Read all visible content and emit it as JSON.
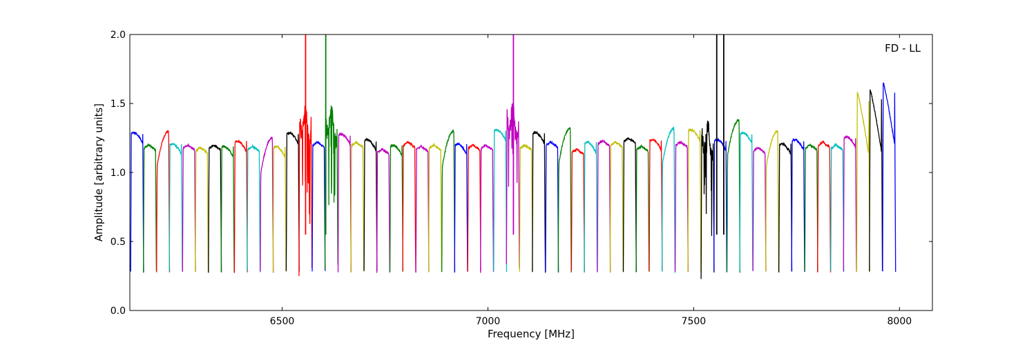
{
  "chart_data": {
    "type": "line",
    "title": "",
    "xlabel": "Frequency [MHz]",
    "ylabel": "Amplitude [arbitrary units]",
    "xlim": [
      6130,
      8080
    ],
    "ylim": [
      0.0,
      2.0
    ],
    "x_ticks": [
      6500,
      7000,
      7500,
      8000
    ],
    "x_tick_labels": [
      "6500",
      "7000",
      "7500",
      "8000"
    ],
    "y_ticks": [
      0.0,
      0.5,
      1.0,
      1.5,
      2.0
    ],
    "y_tick_labels": [
      "0.0",
      "0.5",
      "1.0",
      "1.5",
      "2.0"
    ],
    "grid": false,
    "annotation": "FD - LL",
    "annotation_position": "top-right",
    "band_width_mhz": 31.5,
    "colors": {
      "b": "#0000ff",
      "g": "#008000",
      "r": "#ff0000",
      "c": "#00bfbf",
      "m": "#bf00bf",
      "y": "#bfbf00",
      "k": "#000000"
    },
    "series": [
      {
        "start": 6132,
        "color": "b",
        "peak": 1.33,
        "shape": "hump"
      },
      {
        "start": 6163,
        "color": "g",
        "peak": 1.2,
        "shape": "flat"
      },
      {
        "start": 6195,
        "color": "r",
        "peak": 1.3,
        "shape": "rising"
      },
      {
        "start": 6226,
        "color": "c",
        "peak": 1.25,
        "shape": "hump"
      },
      {
        "start": 6258,
        "color": "m",
        "peak": 1.2,
        "shape": "flat"
      },
      {
        "start": 6289,
        "color": "y",
        "peak": 1.18,
        "shape": "flat"
      },
      {
        "start": 6321,
        "color": "k",
        "peak": 1.2,
        "shape": "flat"
      },
      {
        "start": 6352,
        "color": "g",
        "peak": 1.23,
        "shape": "hump"
      },
      {
        "start": 6384,
        "color": "r",
        "peak": 1.27,
        "shape": "hump"
      },
      {
        "start": 6415,
        "color": "c",
        "peak": 1.19,
        "shape": "flat"
      },
      {
        "start": 6447,
        "color": "m",
        "peak": 1.25,
        "shape": "rising"
      },
      {
        "start": 6478,
        "color": "y",
        "peak": 1.23,
        "shape": "hump"
      },
      {
        "start": 6510,
        "color": "k",
        "peak": 1.33,
        "shape": "hump"
      },
      {
        "start": 6541,
        "color": "r",
        "peak": 1.4,
        "shape": "noisy",
        "spike": 6555
      },
      {
        "start": 6573,
        "color": "b",
        "peak": 1.22,
        "shape": "flat"
      },
      {
        "start": 6604,
        "color": "g",
        "peak": 1.4,
        "shape": "noisy",
        "spike": 6606
      },
      {
        "start": 6636,
        "color": "m",
        "peak": 1.32,
        "shape": "hump"
      },
      {
        "start": 6667,
        "color": "y",
        "peak": 1.22,
        "shape": "flat"
      },
      {
        "start": 6699,
        "color": "k",
        "peak": 1.28,
        "shape": "hump"
      },
      {
        "start": 6730,
        "color": "m",
        "peak": 1.17,
        "shape": "flat"
      },
      {
        "start": 6762,
        "color": "g",
        "peak": 1.24,
        "shape": "hump"
      },
      {
        "start": 6793,
        "color": "r",
        "peak": 1.22,
        "shape": "flat"
      },
      {
        "start": 6825,
        "color": "m",
        "peak": 1.19,
        "shape": "flat"
      },
      {
        "start": 6856,
        "color": "y",
        "peak": 1.2,
        "shape": "flat"
      },
      {
        "start": 6888,
        "color": "g",
        "peak": 1.3,
        "shape": "rising"
      },
      {
        "start": 6919,
        "color": "b",
        "peak": 1.25,
        "shape": "hump"
      },
      {
        "start": 6951,
        "color": "r",
        "peak": 1.2,
        "shape": "flat"
      },
      {
        "start": 6982,
        "color": "m",
        "peak": 1.2,
        "shape": "flat"
      },
      {
        "start": 7014,
        "color": "c",
        "peak": 1.35,
        "shape": "hump"
      },
      {
        "start": 7045,
        "color": "m",
        "peak": 1.42,
        "shape": "noisy",
        "spike": 7060
      },
      {
        "start": 7077,
        "color": "y",
        "peak": 1.2,
        "shape": "flat"
      },
      {
        "start": 7108,
        "color": "k",
        "peak": 1.33,
        "shape": "hump"
      },
      {
        "start": 7140,
        "color": "b",
        "peak": 1.22,
        "shape": "flat"
      },
      {
        "start": 7171,
        "color": "g",
        "peak": 1.32,
        "shape": "rising"
      },
      {
        "start": 7203,
        "color": "r",
        "peak": 1.17,
        "shape": "flat"
      },
      {
        "start": 7234,
        "color": "c",
        "peak": 1.26,
        "shape": "hump"
      },
      {
        "start": 7266,
        "color": "m",
        "peak": 1.23,
        "shape": "flat"
      },
      {
        "start": 7297,
        "color": "y",
        "peak": 1.22,
        "shape": "flat"
      },
      {
        "start": 7329,
        "color": "k",
        "peak": 1.25,
        "shape": "flat"
      },
      {
        "start": 7360,
        "color": "g",
        "peak": 1.19,
        "shape": "flat"
      },
      {
        "start": 7392,
        "color": "r",
        "peak": 1.28,
        "shape": "hump"
      },
      {
        "start": 7423,
        "color": "c",
        "peak": 1.32,
        "shape": "rising"
      },
      {
        "start": 7455,
        "color": "m",
        "peak": 1.22,
        "shape": "flat"
      },
      {
        "start": 7486,
        "color": "y",
        "peak": 1.35,
        "shape": "hump"
      },
      {
        "start": 7518,
        "color": "k",
        "peak": 1.3,
        "shape": "noisy",
        "spike": 7556
      },
      {
        "start": 7549,
        "color": "b",
        "peak": 1.28,
        "shape": "hump"
      },
      {
        "start": 7581,
        "color": "g",
        "peak": 1.38,
        "shape": "rising"
      },
      {
        "start": 7612,
        "color": "c",
        "peak": 1.33,
        "shape": "hump"
      },
      {
        "start": 7644,
        "color": "m",
        "peak": 1.18,
        "shape": "flat"
      },
      {
        "start": 7675,
        "color": "y",
        "peak": 1.3,
        "shape": "rising"
      },
      {
        "start": 7707,
        "color": "k",
        "peak": 1.25,
        "shape": "hump"
      },
      {
        "start": 7738,
        "color": "b",
        "peak": 1.28,
        "shape": "hump"
      },
      {
        "start": 7770,
        "color": "g",
        "peak": 1.2,
        "shape": "flat"
      },
      {
        "start": 7801,
        "color": "r",
        "peak": 1.22,
        "shape": "flat"
      },
      {
        "start": 7833,
        "color": "c",
        "peak": 1.2,
        "shape": "flat"
      },
      {
        "start": 7864,
        "color": "m",
        "peak": 1.3,
        "shape": "hump"
      },
      {
        "start": 7896,
        "color": "y",
        "peak": 1.58,
        "shape": "falling"
      },
      {
        "start": 7927,
        "color": "k",
        "peak": 1.6,
        "shape": "falling"
      },
      {
        "start": 7959,
        "color": "b",
        "peak": 1.65,
        "shape": "falling"
      }
    ],
    "spikes": [
      {
        "x": 6557,
        "color": "r",
        "y": 2.0
      },
      {
        "x": 6606,
        "color": "g",
        "y": 2.0
      },
      {
        "x": 7062,
        "color": "m",
        "y": 2.0
      },
      {
        "x": 7556,
        "color": "k",
        "y": 2.0
      },
      {
        "x": 7573,
        "color": "k",
        "y": 2.0
      }
    ]
  }
}
